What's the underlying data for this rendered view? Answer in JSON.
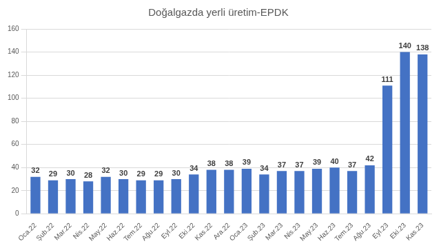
{
  "chart_data": {
    "type": "bar",
    "title": "Doğalgazda yerli üretim-EPDK",
    "categories": [
      "Oca.22",
      "Şub.22",
      "Mar.22",
      "Nis.22",
      "May.22",
      "Haz.22",
      "Tem.22",
      "Ağu.22",
      "Eyl.22",
      "Eki.22",
      "Kas.22",
      "Ara.22",
      "Oca.23",
      "Şub.23",
      "Mar.23",
      "Nis.23",
      "May.23",
      "Haz.23",
      "Tem.23",
      "Ağu.23",
      "Eyl.23",
      "Eki.23",
      "Kas.23"
    ],
    "values": [
      32,
      29,
      30,
      28,
      32,
      30,
      29,
      29,
      30,
      34,
      38,
      38,
      39,
      34,
      37,
      37,
      39,
      40,
      37,
      42,
      111,
      140,
      138
    ],
    "color": "#4472c4",
    "ylim": [
      0,
      160
    ],
    "yticks": [
      0,
      20,
      40,
      60,
      80,
      100,
      120,
      140,
      160
    ],
    "grid": true,
    "data_labels": true
  }
}
